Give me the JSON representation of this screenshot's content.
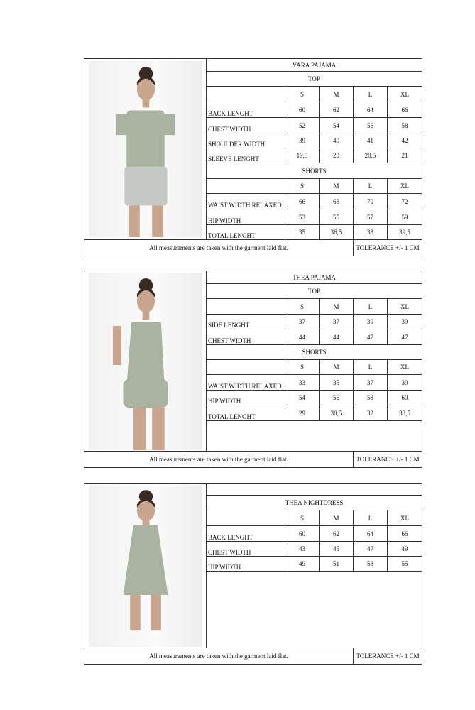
{
  "sizes": [
    "S",
    "M",
    "L",
    "XL"
  ],
  "footer": {
    "note": "All measurements are taken with the garment laid flat.",
    "tolerance": "TOLERANCE +/- 1 CM"
  },
  "colors": {
    "garment_sage": "#a9b3a0",
    "border": "#333333"
  },
  "products": [
    {
      "title": "YARA PAJAMA",
      "image": "model-in-sage-tshirt-and-shorts",
      "sections": [
        {
          "name": "TOP",
          "rows": [
            {
              "label": "BACK LENGHT",
              "values": [
                "60",
                "62",
                "64",
                "66"
              ]
            },
            {
              "label": "CHEST WIDTH",
              "values": [
                "52",
                "54",
                "56",
                "58"
              ]
            },
            {
              "label": "SHOULDER WIDTH",
              "values": [
                "39",
                "40",
                "41",
                "42"
              ]
            },
            {
              "label": "SLEEVE LENGHT",
              "values": [
                "19,5",
                "20",
                "20,5",
                "21"
              ]
            }
          ]
        },
        {
          "name": "SHORTS",
          "rows": [
            {
              "label": "WAIST WIDTH RELAXED",
              "values": [
                "66",
                "68",
                "70",
                "72"
              ]
            },
            {
              "label": "HIP WIDTH",
              "values": [
                "53",
                "55",
                "57",
                "59"
              ]
            },
            {
              "label": "TOTAL LENGHT",
              "values": [
                "35",
                "36,5",
                "38",
                "39,5"
              ]
            }
          ]
        }
      ]
    },
    {
      "title": "THEA PAJAMA",
      "image": "model-in-sage-camisole-and-shorts",
      "sections": [
        {
          "name": "TOP",
          "rows": [
            {
              "label": "SIDE LENGHT",
              "values": [
                "37",
                "37",
                "39",
                "39"
              ]
            },
            {
              "label": "CHEST WIDTH",
              "values": [
                "44",
                "44",
                "47",
                "47"
              ]
            }
          ]
        },
        {
          "name": "SHORTS",
          "rows": [
            {
              "label": "WAIST WIDTH RELAXED",
              "values": [
                "33",
                "35",
                "37",
                "39"
              ]
            },
            {
              "label": "HIP WIDTH",
              "values": [
                "54",
                "56",
                "58",
                "60"
              ]
            },
            {
              "label": "TOTAL LENGHT",
              "values": [
                "29",
                "30,5",
                "32",
                "33,5"
              ]
            }
          ]
        }
      ]
    },
    {
      "title": "THEA NIGHTDRESS",
      "image": "model-in-sage-slip-nightdress",
      "sections": [
        {
          "name": "",
          "rows": [
            {
              "label": "BACK LENGHT",
              "values": [
                "60",
                "62",
                "64",
                "66"
              ]
            },
            {
              "label": "CHEST WIDTH",
              "values": [
                "43",
                "45",
                "47",
                "49"
              ]
            },
            {
              "label": "HIP WIDTH",
              "values": [
                "49",
                "51",
                "53",
                "55"
              ]
            }
          ]
        }
      ]
    }
  ]
}
